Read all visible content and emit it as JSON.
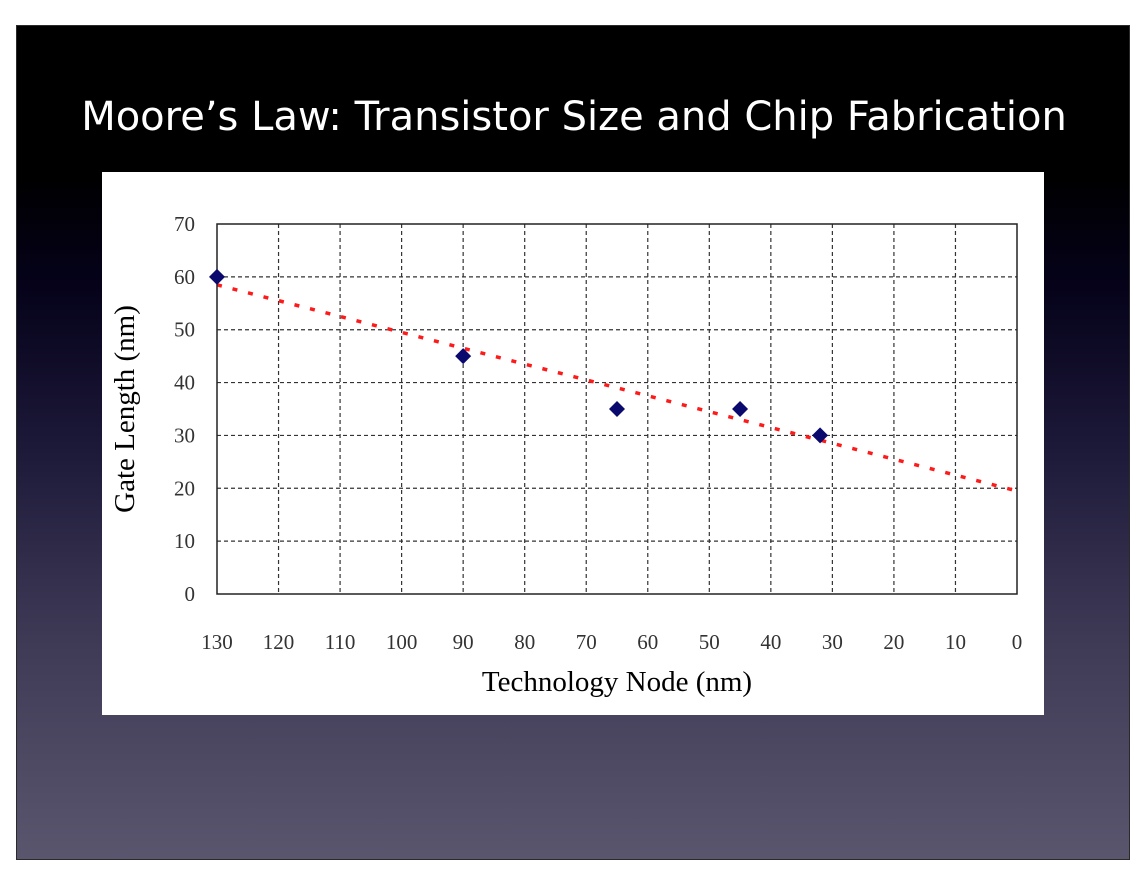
{
  "slide": {
    "title": "Moore’s Law: Transistor Size and Chip Fabrication"
  },
  "chart_data": {
    "type": "scatter",
    "xlabel": "Technology Node (nm)",
    "ylabel": "Gate Length (nm)",
    "xlim": [
      130,
      0
    ],
    "ylim": [
      0,
      70
    ],
    "x_reversed": true,
    "xticks": [
      130,
      120,
      110,
      100,
      90,
      80,
      70,
      60,
      50,
      40,
      30,
      20,
      10,
      0
    ],
    "yticks": [
      0,
      10,
      20,
      30,
      40,
      50,
      60,
      70
    ],
    "grid": true,
    "series": [
      {
        "kind": "points",
        "marker": "diamond",
        "color": "#0a0a6e",
        "x": [
          130,
          90,
          65,
          45,
          32
        ],
        "y": [
          60,
          45,
          35,
          35,
          30
        ]
      },
      {
        "kind": "trendline",
        "style": "dotted",
        "color": "#ff1a1a",
        "x": [
          130,
          0
        ],
        "y": [
          58.5,
          19.5
        ]
      }
    ]
  }
}
